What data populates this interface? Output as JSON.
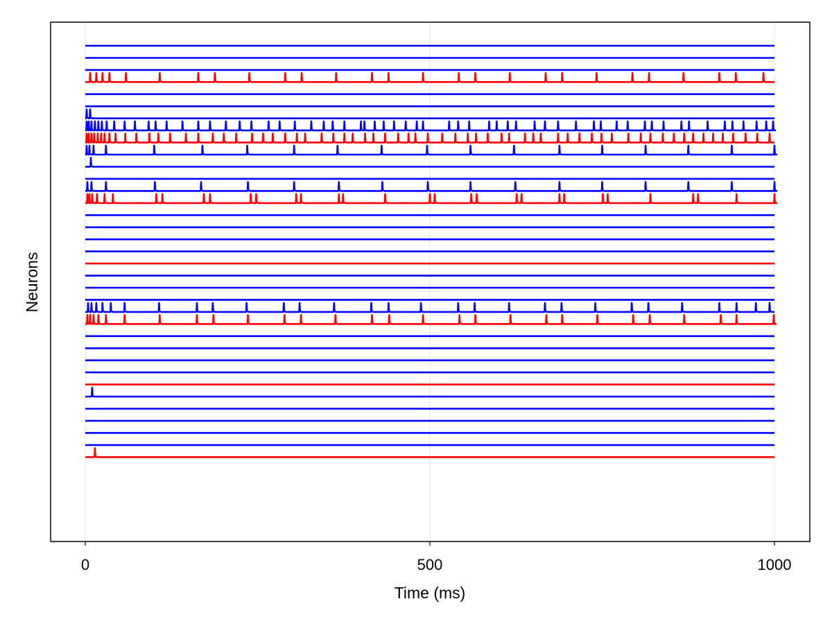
{
  "chart_data": {
    "type": "line",
    "title": "",
    "xlabel": "Time (ms)",
    "ylabel": "Neurons",
    "xlim": [
      0,
      1000
    ],
    "xticks": [
      0,
      500,
      1000
    ],
    "xtick_labels": [
      "0",
      "500",
      "1000"
    ],
    "grid": true,
    "legend": "none",
    "colors": {
      "excitatory": "#0000ff",
      "inhibitory": "#ff0000",
      "grid": "#e6e6e6"
    },
    "series": [
      {
        "color": "#0000ff",
        "spikes": []
      },
      {
        "color": "#0000ff",
        "spikes": []
      },
      {
        "color": "#0000ff",
        "spikes": []
      },
      {
        "color": "#ff0000",
        "spikes": [
          7,
          16,
          25,
          35,
          59,
          108,
          164,
          188,
          238,
          290,
          314,
          364,
          416,
          440,
          490,
          542,
          566,
          616,
          668,
          692,
          742,
          794,
          818,
          868,
          920,
          944,
          984
        ]
      },
      {
        "color": "#0000ff",
        "spikes": []
      },
      {
        "color": "#0000ff",
        "spikes": []
      },
      {
        "color": "#0000ff",
        "spikes": [
          2,
          7
        ]
      },
      {
        "color": "#0000ff",
        "spikes": [
          2,
          5,
          9,
          14,
          19,
          24,
          31,
          42,
          57,
          72,
          92,
          102,
          118,
          141,
          164,
          181,
          204,
          224,
          241,
          266,
          282,
          304,
          328,
          346,
          359,
          376,
          400,
          405,
          420,
          433,
          448,
          465,
          481,
          490,
          528,
          541,
          557,
          586,
          597,
          613,
          625,
          652,
          667,
          686,
          712,
          738,
          748,
          771,
          787,
          812,
          822,
          839,
          865,
          876,
          903,
          928,
          939,
          955,
          974,
          988,
          998
        ]
      },
      {
        "color": "#ff0000",
        "spikes": [
          2,
          5,
          9,
          13,
          18,
          23,
          28,
          35,
          44,
          58,
          74,
          93,
          106,
          123,
          146,
          164,
          185,
          201,
          219,
          242,
          258,
          272,
          290,
          307,
          319,
          343,
          360,
          376,
          388,
          406,
          418,
          435,
          454,
          469,
          479,
          497,
          518,
          537,
          555,
          567,
          584,
          604,
          615,
          638,
          650,
          661,
          686,
          700,
          717,
          735,
          749,
          764,
          788,
          806,
          820,
          838,
          854,
          869,
          882,
          897,
          911,
          925,
          940,
          958,
          975,
          993
        ]
      },
      {
        "color": "#0000ff",
        "spikes": [
          2,
          6,
          12,
          30,
          100,
          170,
          235,
          303,
          366,
          430,
          496,
          559,
          622,
          688,
          750,
          813,
          875,
          938,
          1000
        ]
      },
      {
        "color": "#0000ff",
        "spikes": [
          8
        ]
      },
      {
        "color": "#0000ff",
        "spikes": []
      },
      {
        "color": "#0000ff",
        "spikes": [
          3,
          9,
          30,
          101,
          168,
          236,
          303,
          368,
          431,
          497,
          559,
          624,
          688,
          750,
          813,
          875,
          938,
          1000
        ]
      },
      {
        "color": "#ff0000",
        "spikes": [
          3,
          6,
          10,
          17,
          28,
          40,
          103,
          112,
          172,
          181,
          240,
          248,
          306,
          313,
          368,
          374,
          435,
          500,
          507,
          560,
          568,
          626,
          633,
          688,
          695,
          751,
          758,
          820,
          882,
          889,
          945,
          1000
        ]
      },
      {
        "color": "#0000ff",
        "spikes": []
      },
      {
        "color": "#0000ff",
        "spikes": []
      },
      {
        "color": "#0000ff",
        "spikes": []
      },
      {
        "color": "#0000ff",
        "spikes": []
      },
      {
        "color": "#ff0000",
        "spikes": []
      },
      {
        "color": "#0000ff",
        "spikes": []
      },
      {
        "color": "#0000ff",
        "spikes": []
      },
      {
        "color": "#0000ff",
        "spikes": []
      },
      {
        "color": "#0000ff",
        "spikes": [
          4,
          9,
          16,
          25,
          37,
          57,
          107,
          162,
          185,
          234,
          288,
          311,
          361,
          415,
          440,
          487,
          541,
          565,
          615,
          667,
          691,
          740,
          793,
          817,
          866,
          920,
          945,
          973,
          993
        ]
      },
      {
        "color": "#ff0000",
        "spikes": [
          3,
          7,
          12,
          19,
          30,
          57,
          108,
          162,
          186,
          236,
          289,
          313,
          363,
          416,
          441,
          490,
          543,
          566,
          617,
          669,
          692,
          743,
          795,
          819,
          869,
          922,
          945,
          999
        ]
      },
      {
        "color": "#0000ff",
        "spikes": []
      },
      {
        "color": "#0000ff",
        "spikes": []
      },
      {
        "color": "#0000ff",
        "spikes": []
      },
      {
        "color": "#0000ff",
        "spikes": []
      },
      {
        "color": "#ff0000",
        "spikes": []
      },
      {
        "color": "#0000ff",
        "spikes": [
          10
        ]
      },
      {
        "color": "#0000ff",
        "spikes": []
      },
      {
        "color": "#0000ff",
        "spikes": []
      },
      {
        "color": "#0000ff",
        "spikes": []
      },
      {
        "color": "#0000ff",
        "spikes": []
      },
      {
        "color": "#ff0000",
        "spikes": [
          14
        ]
      }
    ]
  }
}
